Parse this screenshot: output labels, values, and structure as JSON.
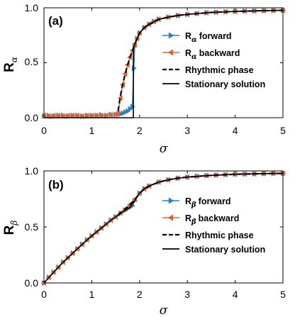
{
  "colors": {
    "forward": "#2e7ec4",
    "backward": "#e4622a",
    "rhythmic": "#000000",
    "stationary": "#000000",
    "axes": "#000000"
  },
  "chart_data": [
    {
      "type": "line",
      "panel_label": "(a)",
      "xlabel": "σ",
      "ylabel": "R",
      "ylabel_sub": "α",
      "xlim": [
        0,
        5
      ],
      "ylim": [
        0,
        1
      ],
      "xticks": [
        "0",
        "1",
        "2",
        "3",
        "4",
        "5"
      ],
      "yticks": [
        "0.0",
        "0.5",
        "1.0"
      ],
      "grid": false,
      "legend_position": "right-middle",
      "legend": [
        {
          "main": "R",
          "sub": "α",
          "suffix": "forward"
        },
        {
          "main": "R",
          "sub": "α",
          "suffix": "backward"
        },
        {
          "main": "Rhythmic phase",
          "sub": "",
          "suffix": ""
        },
        {
          "main": "Stationary solution",
          "sub": "",
          "suffix": ""
        }
      ],
      "series": [
        {
          "key": "forward",
          "style": "triangle-right",
          "x": [
            0,
            0.1,
            0.2,
            0.3,
            0.4,
            0.5,
            0.6,
            0.7,
            0.8,
            0.9,
            1.0,
            1.1,
            1.2,
            1.3,
            1.4,
            1.5,
            1.55,
            1.6,
            1.65,
            1.7,
            1.75,
            1.8,
            1.85,
            1.88,
            1.9,
            1.95,
            2.0,
            2.1,
            2.2,
            2.3,
            2.4,
            2.6,
            2.8,
            3.0,
            3.2,
            3.4,
            3.6,
            3.8,
            4.0,
            4.2,
            4.4,
            4.6,
            4.8,
            5.0
          ],
          "y": [
            0.015,
            0.02,
            0.015,
            0.02,
            0.02,
            0.015,
            0.02,
            0.02,
            0.015,
            0.02,
            0.02,
            0.02,
            0.025,
            0.02,
            0.03,
            0.03,
            0.035,
            0.035,
            0.04,
            0.05,
            0.06,
            0.08,
            0.1,
            0.45,
            0.66,
            0.72,
            0.77,
            0.82,
            0.85,
            0.875,
            0.895,
            0.915,
            0.93,
            0.94,
            0.948,
            0.955,
            0.96,
            0.964,
            0.967,
            0.97,
            0.972,
            0.974,
            0.976,
            0.977
          ]
        },
        {
          "key": "backward",
          "style": "triangle-left",
          "x": [
            0,
            0.1,
            0.2,
            0.3,
            0.4,
            0.5,
            0.6,
            0.7,
            0.8,
            0.9,
            1.0,
            1.1,
            1.2,
            1.3,
            1.4,
            1.5,
            1.55,
            1.6,
            1.65,
            1.7,
            1.75,
            1.8,
            1.85,
            1.9,
            1.95,
            2.0,
            2.1,
            2.2,
            2.3,
            2.4,
            2.6,
            2.8,
            3.0,
            3.2,
            3.4,
            3.6,
            3.8,
            4.0,
            4.2,
            4.4,
            4.6,
            4.8,
            5.0
          ],
          "y": [
            0.02,
            0.015,
            0.02,
            0.02,
            0.015,
            0.02,
            0.02,
            0.02,
            0.015,
            0.02,
            0.02,
            0.02,
            0.02,
            0.02,
            0.025,
            0.03,
            0.04,
            0.18,
            0.3,
            0.4,
            0.48,
            0.55,
            0.61,
            0.66,
            0.72,
            0.77,
            0.82,
            0.85,
            0.875,
            0.895,
            0.915,
            0.93,
            0.94,
            0.948,
            0.955,
            0.96,
            0.964,
            0.967,
            0.97,
            0.972,
            0.974,
            0.976,
            0.977
          ]
        },
        {
          "key": "rhythmic",
          "style": "dashed",
          "x": [
            1.55,
            1.6,
            1.65,
            1.7,
            1.75,
            1.8,
            1.85,
            1.9,
            1.95,
            2.0,
            2.1,
            2.2,
            2.4,
            2.6,
            2.8,
            3.0,
            3.5,
            4.0,
            4.5,
            5.0
          ],
          "y": [
            0.06,
            0.2,
            0.31,
            0.4,
            0.48,
            0.55,
            0.61,
            0.67,
            0.72,
            0.77,
            0.82,
            0.85,
            0.895,
            0.915,
            0.93,
            0.94,
            0.958,
            0.967,
            0.973,
            0.977
          ]
        },
        {
          "key": "stationary",
          "style": "solid",
          "x": [
            0,
            1.87,
            1.87,
            1.9,
            1.95,
            2.0,
            2.1,
            2.2,
            2.4,
            2.6,
            2.8,
            3.0,
            3.5,
            4.0,
            4.5,
            5.0
          ],
          "y": [
            0,
            0,
            0.62,
            0.67,
            0.72,
            0.77,
            0.82,
            0.85,
            0.895,
            0.915,
            0.93,
            0.94,
            0.958,
            0.967,
            0.973,
            0.977
          ]
        }
      ]
    },
    {
      "type": "line",
      "panel_label": "(b)",
      "xlabel": "σ",
      "ylabel": "R",
      "ylabel_sub": "β",
      "xlim": [
        0,
        5
      ],
      "ylim": [
        0,
        1
      ],
      "xticks": [
        "0",
        "1",
        "2",
        "3",
        "4",
        "5"
      ],
      "yticks": [
        "0.0",
        "0.5",
        "1.0"
      ],
      "grid": false,
      "legend_position": "right-middle",
      "legend": [
        {
          "main": "R",
          "sub": "β",
          "suffix": "forward"
        },
        {
          "main": "R",
          "sub": "β",
          "suffix": "backward"
        },
        {
          "main": "Rhythmic phase",
          "sub": "",
          "suffix": ""
        },
        {
          "main": "Stationary solution",
          "sub": "",
          "suffix": ""
        }
      ],
      "series": [
        {
          "key": "forward",
          "style": "triangle-right",
          "x": [
            0,
            0.1,
            0.2,
            0.3,
            0.4,
            0.5,
            0.6,
            0.7,
            0.8,
            0.9,
            1.0,
            1.1,
            1.2,
            1.3,
            1.4,
            1.5,
            1.6,
            1.7,
            1.8,
            1.85,
            1.9,
            2.0,
            2.1,
            2.2,
            2.4,
            2.6,
            2.8,
            3.0,
            3.2,
            3.4,
            3.6,
            3.8,
            4.0,
            4.2,
            4.4,
            4.6,
            4.8,
            5.0
          ],
          "y": [
            0.0,
            0.05,
            0.095,
            0.14,
            0.185,
            0.225,
            0.265,
            0.305,
            0.345,
            0.385,
            0.42,
            0.455,
            0.49,
            0.525,
            0.56,
            0.59,
            0.62,
            0.65,
            0.675,
            0.69,
            0.735,
            0.8,
            0.84,
            0.865,
            0.9,
            0.92,
            0.935,
            0.945,
            0.952,
            0.958,
            0.963,
            0.967,
            0.97,
            0.972,
            0.974,
            0.976,
            0.977,
            0.978
          ]
        },
        {
          "key": "backward",
          "style": "triangle-left",
          "x": [
            0,
            0.1,
            0.2,
            0.3,
            0.4,
            0.5,
            0.6,
            0.7,
            0.8,
            0.9,
            1.0,
            1.1,
            1.2,
            1.3,
            1.4,
            1.5,
            1.6,
            1.7,
            1.8,
            1.9,
            2.0,
            2.1,
            2.2,
            2.4,
            2.6,
            2.8,
            3.0,
            3.2,
            3.4,
            3.6,
            3.8,
            4.0,
            4.2,
            4.4,
            4.6,
            4.8,
            5.0
          ],
          "y": [
            0.0,
            0.05,
            0.095,
            0.14,
            0.185,
            0.225,
            0.265,
            0.305,
            0.345,
            0.385,
            0.42,
            0.455,
            0.49,
            0.525,
            0.56,
            0.59,
            0.625,
            0.66,
            0.7,
            0.745,
            0.8,
            0.84,
            0.865,
            0.9,
            0.92,
            0.935,
            0.945,
            0.952,
            0.958,
            0.963,
            0.967,
            0.97,
            0.972,
            0.974,
            0.976,
            0.977,
            0.978
          ]
        },
        {
          "key": "rhythmic",
          "style": "dashed",
          "x": [
            1.55,
            1.6,
            1.7,
            1.8,
            1.9,
            2.0,
            2.1,
            2.2,
            2.4,
            2.6,
            2.8,
            3.0,
            3.5,
            4.0,
            4.5,
            5.0
          ],
          "y": [
            0.605,
            0.625,
            0.66,
            0.7,
            0.745,
            0.8,
            0.84,
            0.865,
            0.9,
            0.92,
            0.935,
            0.945,
            0.96,
            0.97,
            0.975,
            0.978
          ]
        },
        {
          "key": "stationary",
          "style": "solid",
          "x": [
            0,
            0.2,
            0.4,
            0.6,
            0.8,
            1.0,
            1.2,
            1.4,
            1.6,
            1.8,
            1.9,
            2.0,
            2.1,
            2.2,
            2.4,
            2.6,
            2.8,
            3.0,
            3.5,
            4.0,
            4.5,
            5.0
          ],
          "y": [
            0.0,
            0.095,
            0.185,
            0.265,
            0.345,
            0.42,
            0.49,
            0.56,
            0.62,
            0.675,
            0.735,
            0.8,
            0.84,
            0.865,
            0.9,
            0.92,
            0.935,
            0.945,
            0.96,
            0.97,
            0.975,
            0.978
          ]
        }
      ]
    }
  ]
}
